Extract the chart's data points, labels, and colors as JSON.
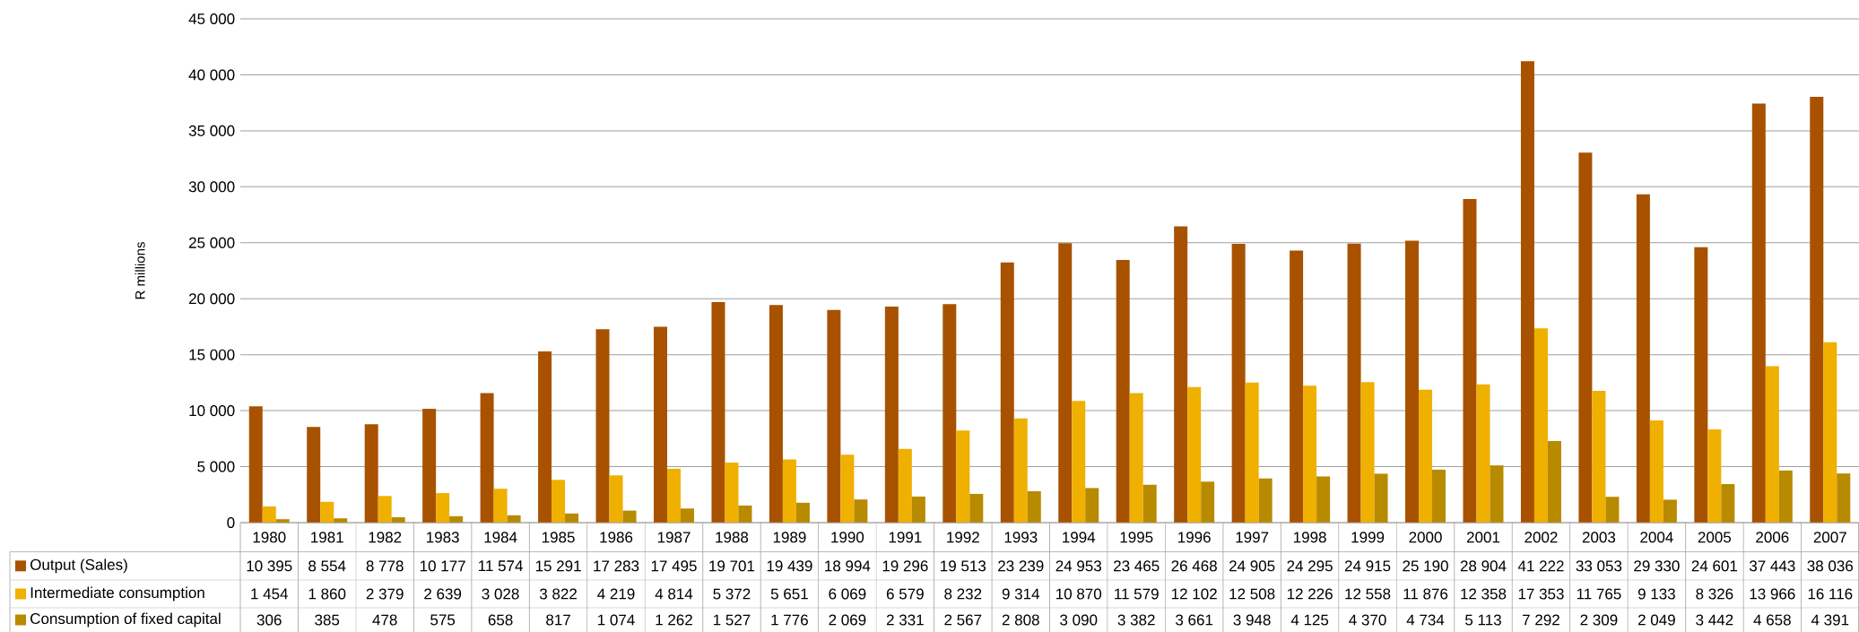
{
  "chart_data": {
    "type": "bar",
    "ylabel": "R millions",
    "categories": [
      "1980",
      "1981",
      "1982",
      "1983",
      "1984",
      "1985",
      "1986",
      "1987",
      "1988",
      "1989",
      "1990",
      "1991",
      "1992",
      "1993",
      "1994",
      "1995",
      "1996",
      "1997",
      "1998",
      "1999",
      "2000",
      "2001",
      "2002",
      "2003",
      "2004",
      "2005",
      "2006",
      "2007"
    ],
    "series": [
      {
        "name": "Output (Sales)",
        "color": "#a85200",
        "values": [
          10395,
          8554,
          8778,
          10177,
          11574,
          15291,
          17283,
          17495,
          19701,
          19439,
          18994,
          19296,
          19513,
          23239,
          24953,
          23465,
          26468,
          24905,
          24295,
          24915,
          25190,
          28904,
          41222,
          33053,
          29330,
          24601,
          37443,
          38036
        ],
        "value_labels": [
          "10 395",
          "8 554",
          "8 778",
          "10 177",
          "11 574",
          "15 291",
          "17 283",
          "17 495",
          "19 701",
          "19 439",
          "18 994",
          "19 296",
          "19 513",
          "23 239",
          "24 953",
          "23 465",
          "26 468",
          "24 905",
          "24 295",
          "24 915",
          "25 190",
          "28 904",
          "41 222",
          "33 053",
          "29 330",
          "24 601",
          "37 443",
          "38 036"
        ]
      },
      {
        "name": "Intermediate consumption",
        "color": "#efb000",
        "values": [
          1454,
          1860,
          2379,
          2639,
          3028,
          3822,
          4219,
          4814,
          5372,
          5651,
          6069,
          6579,
          8232,
          9314,
          10870,
          11579,
          12102,
          12508,
          12226,
          12558,
          11876,
          12358,
          17353,
          11765,
          9133,
          8326,
          13966,
          16116
        ],
        "value_labels": [
          "1 454",
          "1 860",
          "2 379",
          "2 639",
          "3 028",
          "3 822",
          "4 219",
          "4 814",
          "5 372",
          "5 651",
          "6 069",
          "6 579",
          "8 232",
          "9 314",
          "10 870",
          "11 579",
          "12 102",
          "12 508",
          "12 226",
          "12 558",
          "11 876",
          "12 358",
          "17 353",
          "11 765",
          "9 133",
          "8 326",
          "13 966",
          "16 116"
        ]
      },
      {
        "name": "Consumption of fixed capital",
        "color": "#b88a00",
        "values": [
          306,
          385,
          478,
          575,
          658,
          817,
          1074,
          1262,
          1527,
          1776,
          2069,
          2331,
          2567,
          2808,
          3090,
          3382,
          3661,
          3948,
          4125,
          4370,
          4734,
          5113,
          7292,
          2309,
          2049,
          3442,
          4658,
          4391
        ],
        "value_labels": [
          "306",
          "385",
          "478",
          "575",
          "658",
          "817",
          "1 074",
          "1 262",
          "1 527",
          "1 776",
          "2 069",
          "2 331",
          "2 567",
          "2 808",
          "3 090",
          "3 382",
          "3 661",
          "3 948",
          "4 125",
          "4 370",
          "4 734",
          "5 113",
          "7 292",
          "2 309",
          "2 049",
          "3 442",
          "4 658",
          "4 391"
        ]
      }
    ],
    "ylim": [
      0,
      45000
    ],
    "yticks": [
      0,
      {
        "value": 5000,
        "label": "5 000"
      },
      {
        "value": 10000,
        "label": "10 000"
      },
      {
        "value": 15000,
        "label": "15 000"
      },
      {
        "value": 20000,
        "label": "20 000"
      },
      {
        "value": 25000,
        "label": "25 000"
      },
      {
        "value": 30000,
        "label": "30 000"
      },
      {
        "value": 35000,
        "label": "35 000"
      },
      {
        "value": 40000,
        "label": "40 000"
      },
      {
        "value": 45000,
        "label": "45 000"
      }
    ],
    "grid": "y",
    "legend": "bottom"
  }
}
